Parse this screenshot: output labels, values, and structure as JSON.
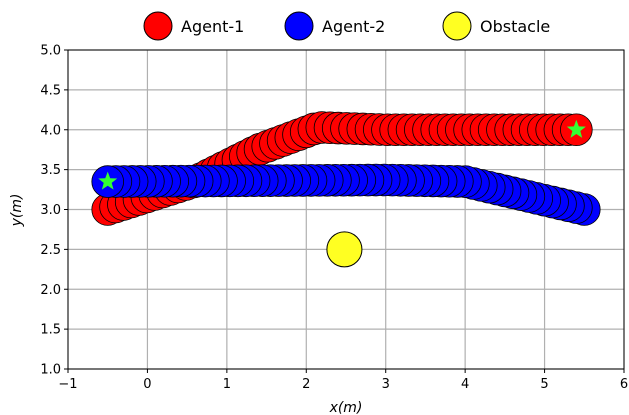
{
  "chart_data": {
    "type": "scatter",
    "title": "",
    "xlabel": "x(m)",
    "ylabel": "y(m)",
    "xlim": [
      -1,
      6
    ],
    "ylim": [
      1.0,
      5.0
    ],
    "x_ticks": [
      "−1",
      "0",
      "1",
      "2",
      "3",
      "4",
      "5",
      "6"
    ],
    "y_ticks": [
      "1.0",
      "1.5",
      "2.0",
      "2.5",
      "3.0",
      "3.5",
      "4.0",
      "4.5",
      "5.0"
    ],
    "grid": true,
    "legend_position": "top-center",
    "legend": [
      {
        "label": "Agent-1",
        "color": "#ff0000"
      },
      {
        "label": "Agent-2",
        "color": "#0000ff"
      },
      {
        "label": "Obstacle",
        "color": "#ffff22"
      }
    ],
    "series": [
      {
        "name": "Agent-1",
        "color": "#ff0000",
        "radius": 0.2,
        "start": [
          -0.5,
          3.0
        ],
        "goal": [
          5.4,
          4.0
        ],
        "path": [
          {
            "x": -0.5,
            "y": 3.0
          },
          {
            "x": 0.6,
            "y": 3.35
          },
          {
            "x": 1.4,
            "y": 3.75
          },
          {
            "x": 2.15,
            "y": 4.03
          },
          {
            "x": 3.0,
            "y": 4.0
          },
          {
            "x": 5.4,
            "y": 4.0
          }
        ]
      },
      {
        "name": "Agent-2",
        "color": "#0000ff",
        "radius": 0.2,
        "start": [
          5.5,
          3.0
        ],
        "goal": [
          -0.5,
          3.35
        ],
        "path": [
          {
            "x": 5.5,
            "y": 3.0
          },
          {
            "x": 4.0,
            "y": 3.35
          },
          {
            "x": 3.0,
            "y": 3.37
          },
          {
            "x": -0.5,
            "y": 3.35
          }
        ]
      },
      {
        "name": "Obstacle",
        "color": "#ffff22",
        "radius": 0.3,
        "points": [
          {
            "x": 2.48,
            "y": 2.5
          }
        ]
      }
    ],
    "goal_marker_color": "#33ff33"
  }
}
